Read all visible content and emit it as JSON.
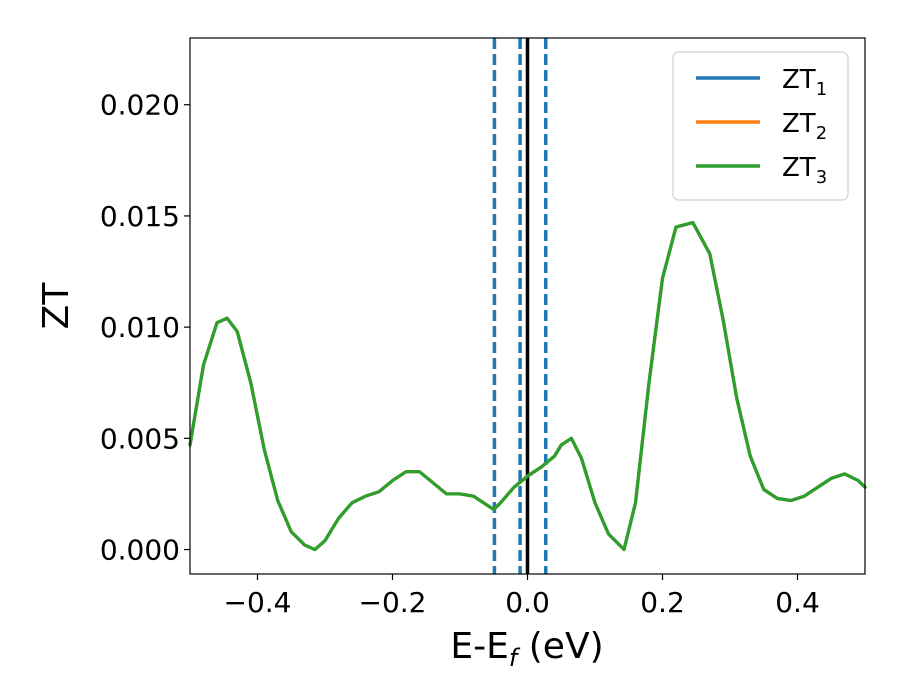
{
  "chart_data": {
    "type": "line",
    "xlabel": {
      "main": "E-E",
      "sub": "f",
      "suffix": " (eV)"
    },
    "ylabel": "ZT",
    "xlim": [
      -0.5,
      0.5
    ],
    "ylim": [
      -0.0011,
      0.023
    ],
    "xticks": [
      {
        "value": -0.4,
        "label": "−0.4"
      },
      {
        "value": -0.2,
        "label": "−0.2"
      },
      {
        "value": 0.0,
        "label": "0.0"
      },
      {
        "value": 0.2,
        "label": "0.2"
      },
      {
        "value": 0.4,
        "label": "0.4"
      }
    ],
    "yticks": [
      {
        "value": 0.0,
        "label": "0.000"
      },
      {
        "value": 0.005,
        "label": "0.005"
      },
      {
        "value": 0.01,
        "label": "0.010"
      },
      {
        "value": 0.015,
        "label": "0.015"
      },
      {
        "value": 0.02,
        "label": "0.020"
      }
    ],
    "grid": false,
    "legend_position": "top-right",
    "x": [
      -0.5,
      -0.48,
      -0.46,
      -0.445,
      -0.43,
      -0.41,
      -0.39,
      -0.37,
      -0.35,
      -0.33,
      -0.315,
      -0.3,
      -0.28,
      -0.26,
      -0.24,
      -0.22,
      -0.2,
      -0.18,
      -0.16,
      -0.14,
      -0.12,
      -0.1,
      -0.08,
      -0.06,
      -0.05,
      -0.04,
      -0.02,
      0.0,
      0.02,
      0.04,
      0.05,
      0.065,
      0.08,
      0.1,
      0.12,
      0.143,
      0.16,
      0.18,
      0.2,
      0.22,
      0.245,
      0.27,
      0.29,
      0.31,
      0.33,
      0.35,
      0.37,
      0.39,
      0.41,
      0.43,
      0.45,
      0.47,
      0.49,
      0.5
    ],
    "series": [
      {
        "name": "ZT",
        "sub": "1",
        "color": "#1f77b4",
        "values": [
          0.0047,
          0.0083,
          0.0102,
          0.0104,
          0.0098,
          0.0075,
          0.0045,
          0.0022,
          0.0008,
          0.0002,
          0.0,
          0.0004,
          0.0014,
          0.0021,
          0.0024,
          0.0026,
          0.0031,
          0.0035,
          0.0035,
          0.003,
          0.0025,
          0.0025,
          0.0024,
          0.002,
          0.0018,
          0.0021,
          0.0028,
          0.0033,
          0.0037,
          0.0042,
          0.0047,
          0.005,
          0.0041,
          0.0021,
          0.0007,
          0.0,
          0.0021,
          0.0075,
          0.0122,
          0.0145,
          0.0147,
          0.0133,
          0.0103,
          0.0068,
          0.0042,
          0.0027,
          0.0023,
          0.0022,
          0.0024,
          0.0028,
          0.0032,
          0.0034,
          0.0031,
          0.0028
        ]
      },
      {
        "name": "ZT",
        "sub": "2",
        "color": "#ff7f0e",
        "values": [
          0.0047,
          0.0083,
          0.0102,
          0.0104,
          0.0098,
          0.0075,
          0.0045,
          0.0022,
          0.0008,
          0.0002,
          0.0,
          0.0004,
          0.0014,
          0.0021,
          0.0024,
          0.0026,
          0.0031,
          0.0035,
          0.0035,
          0.003,
          0.0025,
          0.0025,
          0.0024,
          0.002,
          0.0018,
          0.0021,
          0.0028,
          0.0033,
          0.0037,
          0.0042,
          0.0047,
          0.005,
          0.0041,
          0.0021,
          0.0007,
          0.0,
          0.0021,
          0.0075,
          0.0122,
          0.0145,
          0.0147,
          0.0133,
          0.0103,
          0.0068,
          0.0042,
          0.0027,
          0.0023,
          0.0022,
          0.0024,
          0.0028,
          0.0032,
          0.0034,
          0.0031,
          0.0028
        ]
      },
      {
        "name": "ZT",
        "sub": "3",
        "color": "#2ca02c",
        "values": [
          0.0047,
          0.0083,
          0.0102,
          0.0104,
          0.0098,
          0.0075,
          0.0045,
          0.0022,
          0.0008,
          0.0002,
          0.0,
          0.0004,
          0.0014,
          0.0021,
          0.0024,
          0.0026,
          0.0031,
          0.0035,
          0.0035,
          0.003,
          0.0025,
          0.0025,
          0.0024,
          0.002,
          0.0018,
          0.0021,
          0.0028,
          0.0033,
          0.0037,
          0.0042,
          0.0047,
          0.005,
          0.0041,
          0.0021,
          0.0007,
          0.0,
          0.0021,
          0.0075,
          0.0122,
          0.0145,
          0.0147,
          0.0133,
          0.0103,
          0.0068,
          0.0042,
          0.0027,
          0.0023,
          0.0022,
          0.0024,
          0.0028,
          0.0032,
          0.0034,
          0.0031,
          0.0028
        ]
      }
    ],
    "vlines": [
      {
        "x": -0.049,
        "style": "dashed",
        "color": "#1f77b4"
      },
      {
        "x": -0.011,
        "style": "dashed",
        "color": "#1f77b4"
      },
      {
        "x": 0.0,
        "style": "solid",
        "color": "#000000"
      },
      {
        "x": 0.027,
        "style": "dashed",
        "color": "#1f77b4"
      }
    ]
  }
}
